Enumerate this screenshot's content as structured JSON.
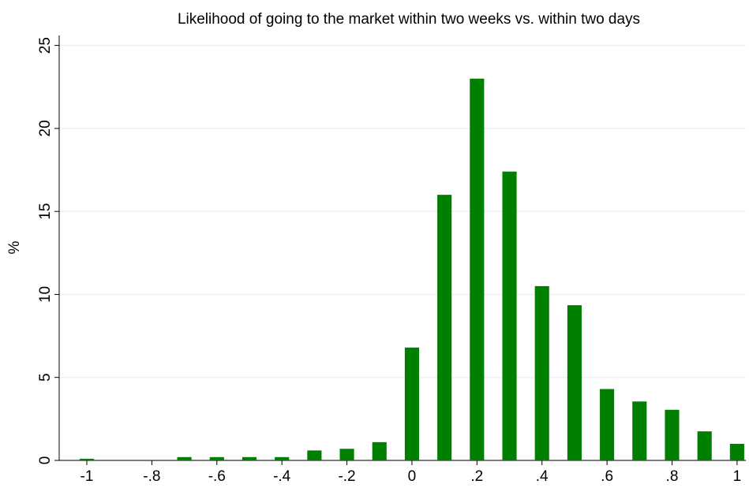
{
  "chart_data": {
    "type": "bar",
    "title": "Likelihood of going to the market within two weeks vs. within two days",
    "y_label": "%",
    "x": [
      -1,
      -0.9,
      -0.8,
      -0.7,
      -0.6,
      -0.5,
      -0.4,
      -0.3,
      -0.2,
      -0.1,
      0,
      0.1,
      0.2,
      0.3,
      0.4,
      0.5,
      0.6,
      0.7,
      0.8,
      0.9,
      1
    ],
    "values": [
      0.1,
      0,
      0,
      0.2,
      0.2,
      0.2,
      0.2,
      0.6,
      0.7,
      1.1,
      6.8,
      16,
      23,
      17.4,
      10.5,
      9.35,
      4.3,
      3.55,
      3.05,
      1.75,
      1
    ],
    "color": "#007f00",
    "xlim": [
      -1.085,
      1.027
    ],
    "ylim": [
      0,
      25.6
    ],
    "xticks": [
      -1,
      {
        "value": -0.8,
        "label": "-.8"
      },
      {
        "value": -0.6,
        "label": "-.6"
      },
      {
        "value": -0.4,
        "label": "-.4"
      },
      {
        "value": -0.2,
        "label": "-.2"
      },
      0,
      {
        "value": 0.2,
        "label": ".2"
      },
      {
        "value": 0.4,
        "label": ".4"
      },
      {
        "value": 0.6,
        "label": ".6"
      },
      {
        "value": 0.8,
        "label": ".8"
      },
      1
    ],
    "yticks": [
      0,
      5,
      10,
      15,
      20,
      25
    ],
    "grid": true
  }
}
